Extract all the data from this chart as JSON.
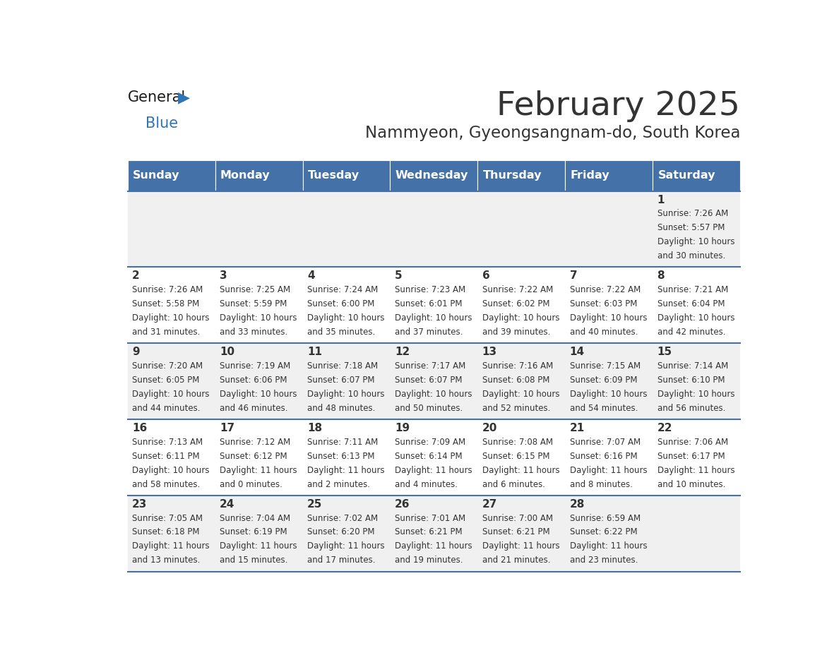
{
  "title": "February 2025",
  "subtitle": "Nammyeon, Gyeongsangnam-do, South Korea",
  "header_bg": "#4472a8",
  "header_text": "#ffffff",
  "row_bg_odd": "#f0f0f0",
  "row_bg_even": "#ffffff",
  "separator_color": "#4472a8",
  "text_color": "#333333",
  "days_of_week": [
    "Sunday",
    "Monday",
    "Tuesday",
    "Wednesday",
    "Thursday",
    "Friday",
    "Saturday"
  ],
  "calendar_data": [
    [
      null,
      null,
      null,
      null,
      null,
      null,
      {
        "day": 1,
        "sunrise": "7:26 AM",
        "sunset": "5:57 PM",
        "daylight_h": "10 hours",
        "daylight_m": "and 30 minutes."
      }
    ],
    [
      {
        "day": 2,
        "sunrise": "7:26 AM",
        "sunset": "5:58 PM",
        "daylight_h": "10 hours",
        "daylight_m": "and 31 minutes."
      },
      {
        "day": 3,
        "sunrise": "7:25 AM",
        "sunset": "5:59 PM",
        "daylight_h": "10 hours",
        "daylight_m": "and 33 minutes."
      },
      {
        "day": 4,
        "sunrise": "7:24 AM",
        "sunset": "6:00 PM",
        "daylight_h": "10 hours",
        "daylight_m": "and 35 minutes."
      },
      {
        "day": 5,
        "sunrise": "7:23 AM",
        "sunset": "6:01 PM",
        "daylight_h": "10 hours",
        "daylight_m": "and 37 minutes."
      },
      {
        "day": 6,
        "sunrise": "7:22 AM",
        "sunset": "6:02 PM",
        "daylight_h": "10 hours",
        "daylight_m": "and 39 minutes."
      },
      {
        "day": 7,
        "sunrise": "7:22 AM",
        "sunset": "6:03 PM",
        "daylight_h": "10 hours",
        "daylight_m": "and 40 minutes."
      },
      {
        "day": 8,
        "sunrise": "7:21 AM",
        "sunset": "6:04 PM",
        "daylight_h": "10 hours",
        "daylight_m": "and 42 minutes."
      }
    ],
    [
      {
        "day": 9,
        "sunrise": "7:20 AM",
        "sunset": "6:05 PM",
        "daylight_h": "10 hours",
        "daylight_m": "and 44 minutes."
      },
      {
        "day": 10,
        "sunrise": "7:19 AM",
        "sunset": "6:06 PM",
        "daylight_h": "10 hours",
        "daylight_m": "and 46 minutes."
      },
      {
        "day": 11,
        "sunrise": "7:18 AM",
        "sunset": "6:07 PM",
        "daylight_h": "10 hours",
        "daylight_m": "and 48 minutes."
      },
      {
        "day": 12,
        "sunrise": "7:17 AM",
        "sunset": "6:07 PM",
        "daylight_h": "10 hours",
        "daylight_m": "and 50 minutes."
      },
      {
        "day": 13,
        "sunrise": "7:16 AM",
        "sunset": "6:08 PM",
        "daylight_h": "10 hours",
        "daylight_m": "and 52 minutes."
      },
      {
        "day": 14,
        "sunrise": "7:15 AM",
        "sunset": "6:09 PM",
        "daylight_h": "10 hours",
        "daylight_m": "and 54 minutes."
      },
      {
        "day": 15,
        "sunrise": "7:14 AM",
        "sunset": "6:10 PM",
        "daylight_h": "10 hours",
        "daylight_m": "and 56 minutes."
      }
    ],
    [
      {
        "day": 16,
        "sunrise": "7:13 AM",
        "sunset": "6:11 PM",
        "daylight_h": "10 hours",
        "daylight_m": "and 58 minutes."
      },
      {
        "day": 17,
        "sunrise": "7:12 AM",
        "sunset": "6:12 PM",
        "daylight_h": "11 hours",
        "daylight_m": "and 0 minutes."
      },
      {
        "day": 18,
        "sunrise": "7:11 AM",
        "sunset": "6:13 PM",
        "daylight_h": "11 hours",
        "daylight_m": "and 2 minutes."
      },
      {
        "day": 19,
        "sunrise": "7:09 AM",
        "sunset": "6:14 PM",
        "daylight_h": "11 hours",
        "daylight_m": "and 4 minutes."
      },
      {
        "day": 20,
        "sunrise": "7:08 AM",
        "sunset": "6:15 PM",
        "daylight_h": "11 hours",
        "daylight_m": "and 6 minutes."
      },
      {
        "day": 21,
        "sunrise": "7:07 AM",
        "sunset": "6:16 PM",
        "daylight_h": "11 hours",
        "daylight_m": "and 8 minutes."
      },
      {
        "day": 22,
        "sunrise": "7:06 AM",
        "sunset": "6:17 PM",
        "daylight_h": "11 hours",
        "daylight_m": "and 10 minutes."
      }
    ],
    [
      {
        "day": 23,
        "sunrise": "7:05 AM",
        "sunset": "6:18 PM",
        "daylight_h": "11 hours",
        "daylight_m": "and 13 minutes."
      },
      {
        "day": 24,
        "sunrise": "7:04 AM",
        "sunset": "6:19 PM",
        "daylight_h": "11 hours",
        "daylight_m": "and 15 minutes."
      },
      {
        "day": 25,
        "sunrise": "7:02 AM",
        "sunset": "6:20 PM",
        "daylight_h": "11 hours",
        "daylight_m": "and 17 minutes."
      },
      {
        "day": 26,
        "sunrise": "7:01 AM",
        "sunset": "6:21 PM",
        "daylight_h": "11 hours",
        "daylight_m": "and 19 minutes."
      },
      {
        "day": 27,
        "sunrise": "7:00 AM",
        "sunset": "6:21 PM",
        "daylight_h": "11 hours",
        "daylight_m": "and 21 minutes."
      },
      {
        "day": 28,
        "sunrise": "6:59 AM",
        "sunset": "6:22 PM",
        "daylight_h": "11 hours",
        "daylight_m": "and 23 minutes."
      },
      null
    ]
  ]
}
